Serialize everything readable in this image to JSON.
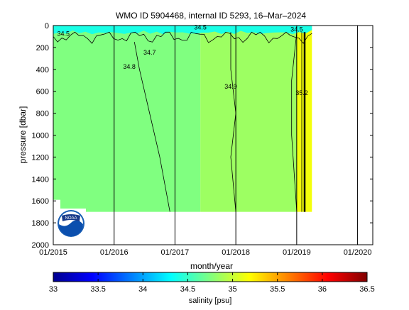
{
  "chart_data": {
    "type": "heatmap",
    "title": "WMO ID 5904468, internal ID 5293, 16–Mar–2024",
    "xlabel": "month/year",
    "ylabel": "pressure [dbar]",
    "x_ticks": [
      "01/2015",
      "01/2016",
      "01/2017",
      "01/2018",
      "01/2019",
      "01/2020"
    ],
    "y_ticks": [
      "0",
      "200",
      "400",
      "600",
      "800",
      "1000",
      "1200",
      "1400",
      "1600",
      "1800",
      "2000"
    ],
    "ylim": [
      0,
      2000
    ],
    "y_reversed": true,
    "xlim": [
      "2015-01",
      "2020-04"
    ],
    "data_extent": {
      "x": [
        "2015-01",
        "2019-04"
      ],
      "max_pressure": 1700
    },
    "zones": [
      {
        "x_start": "2015-01",
        "x_end": "2017-06",
        "salinity": 34.75
      },
      {
        "x_start": "2017-06",
        "x_end": "2019-01",
        "salinity": 34.85
      },
      {
        "x_start": "2019-01",
        "x_end": "2019-04",
        "salinity": 35.15
      }
    ],
    "surface_salinity": 34.4,
    "contour_labels": [
      {
        "text": "34.5",
        "x": "2015-03",
        "p": 80
      },
      {
        "text": "34.5",
        "x": "2017-06",
        "p": 20
      },
      {
        "text": "34.5",
        "x": "2019-01",
        "p": 40
      },
      {
        "text": "34.7",
        "x": "2016-08",
        "p": 250
      },
      {
        "text": "34.8",
        "x": "2016-04",
        "p": 380
      },
      {
        "text": "34.9",
        "x": "2017-12",
        "p": 560
      },
      {
        "text": "35.2",
        "x": "2019-02",
        "p": 620
      }
    ],
    "colorbar": {
      "label": "salinity [psu]",
      "min": 33,
      "max": 36.5,
      "ticks": [
        "33",
        "33.5",
        "34",
        "34.5",
        "35",
        "35.5",
        "36",
        "36.5"
      ]
    },
    "logo": "NOAA",
    "grid": "vertical lines at year boundaries"
  }
}
